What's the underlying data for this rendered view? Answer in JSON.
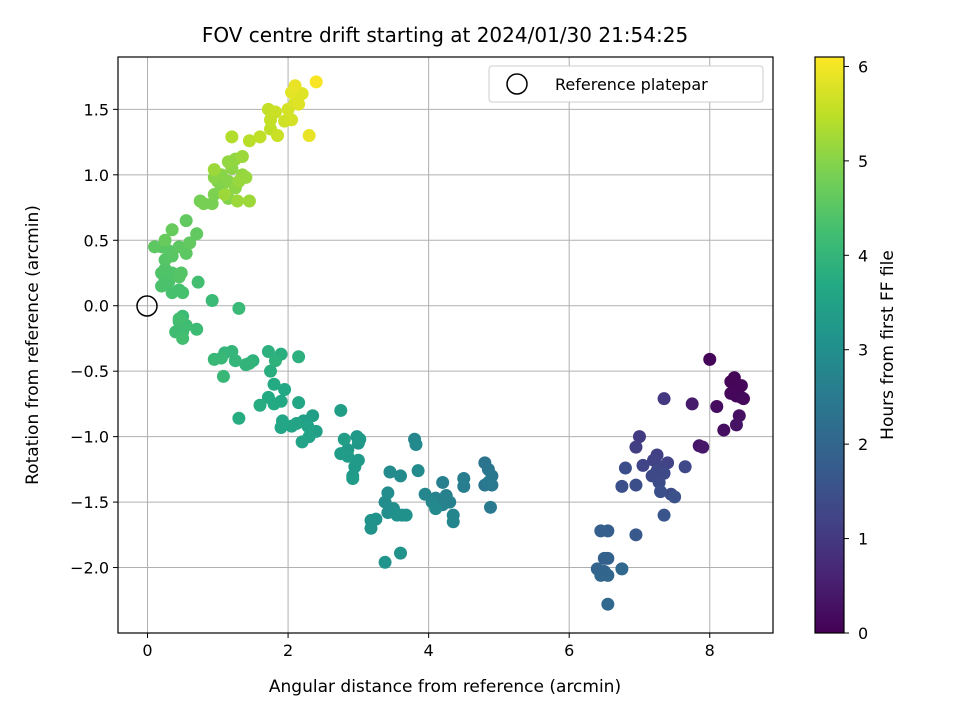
{
  "chart_data": {
    "type": "scatter",
    "title": "FOV centre drift starting at 2024/01/30 21:54:25",
    "xlabel": "Angular distance from reference (arcmin)",
    "ylabel": "Rotation from reference (arcmin)",
    "xlim": [
      -0.42,
      8.9
    ],
    "ylim": [
      -2.5,
      1.9
    ],
    "xticks": [
      0,
      2,
      4,
      6,
      8
    ],
    "xtick_labels": [
      "0",
      "2",
      "4",
      "6",
      "8"
    ],
    "yticks": [
      1.5,
      1.0,
      0.5,
      0.0,
      -0.5,
      -1.0,
      -1.5,
      -2.0
    ],
    "ytick_labels": [
      "1.5",
      "1.0",
      "0.5",
      "0.0",
      "−0.5",
      "−1.0",
      "−1.5",
      "−2.0"
    ],
    "grid": true,
    "colormap": "viridis",
    "colorbar": {
      "label": "Hours from first FF file",
      "range": [
        0,
        6.1
      ],
      "ticks": [
        0,
        1,
        2,
        3,
        4,
        5,
        6
      ],
      "tick_labels": [
        "0",
        "1",
        "2",
        "3",
        "4",
        "5",
        "6"
      ]
    },
    "legend": {
      "placement": "top-right",
      "label": "Reference platepar"
    },
    "reference_point": {
      "x": 0,
      "y": 0
    },
    "points": [
      [
        8.0,
        -0.41,
        0.05
      ],
      [
        8.35,
        -0.55,
        0.05
      ],
      [
        8.3,
        -0.58,
        0.08
      ],
      [
        8.45,
        -0.61,
        0.1
      ],
      [
        8.35,
        -0.65,
        0.1
      ],
      [
        8.3,
        -0.67,
        0.12
      ],
      [
        8.38,
        -0.69,
        0.1
      ],
      [
        8.45,
        -0.7,
        0.12
      ],
      [
        8.48,
        -0.71,
        0.15
      ],
      [
        8.1,
        -0.77,
        0.2
      ],
      [
        8.42,
        -0.84,
        0.25
      ],
      [
        8.2,
        -0.95,
        0.25
      ],
      [
        8.38,
        -0.91,
        0.3
      ],
      [
        7.85,
        -1.07,
        0.35
      ],
      [
        7.9,
        -1.08,
        0.4
      ],
      [
        7.75,
        -0.75,
        0.45
      ],
      [
        7.35,
        -0.71,
        1.0
      ],
      [
        7.0,
        -1.0,
        1.05
      ],
      [
        6.95,
        -1.08,
        1.1
      ],
      [
        7.25,
        -1.14,
        1.15
      ],
      [
        7.2,
        -1.18,
        1.2
      ],
      [
        7.4,
        -1.2,
        1.2
      ],
      [
        7.05,
        -1.22,
        1.25
      ],
      [
        7.3,
        -1.23,
        1.25
      ],
      [
        7.25,
        -1.26,
        1.3
      ],
      [
        7.65,
        -1.23,
        1.3
      ],
      [
        7.35,
        -1.28,
        1.35
      ],
      [
        7.18,
        -1.3,
        1.35
      ],
      [
        7.28,
        -1.35,
        1.4
      ],
      [
        7.45,
        -1.44,
        1.4
      ],
      [
        6.95,
        -1.37,
        1.45
      ],
      [
        6.75,
        -1.38,
        1.5
      ],
      [
        6.8,
        -1.24,
        1.45
      ],
      [
        7.3,
        -1.42,
        1.5
      ],
      [
        7.5,
        -1.46,
        1.55
      ],
      [
        7.35,
        -1.6,
        1.6
      ],
      [
        6.95,
        -1.75,
        1.7
      ],
      [
        6.55,
        -1.72,
        1.8
      ],
      [
        6.45,
        -1.72,
        1.85
      ],
      [
        6.5,
        -1.93,
        1.85
      ],
      [
        6.55,
        -1.93,
        1.9
      ],
      [
        6.4,
        -2.01,
        1.95
      ],
      [
        6.5,
        -2.03,
        1.95
      ],
      [
        6.45,
        -2.06,
        2.0
      ],
      [
        6.55,
        -2.06,
        2.0
      ],
      [
        6.75,
        -2.01,
        2.05
      ],
      [
        6.55,
        -2.28,
        2.05
      ],
      [
        4.8,
        -1.2,
        2.35
      ],
      [
        4.85,
        -1.25,
        2.4
      ],
      [
        4.9,
        -1.3,
        2.45
      ],
      [
        4.8,
        -1.37,
        2.4
      ],
      [
        4.9,
        -1.37,
        2.45
      ],
      [
        4.85,
        -1.35,
        2.5
      ],
      [
        4.88,
        -1.54,
        2.5
      ],
      [
        4.5,
        -1.32,
        2.55
      ],
      [
        4.5,
        -1.38,
        2.55
      ],
      [
        4.2,
        -1.35,
        2.6
      ],
      [
        4.25,
        -1.45,
        2.65
      ],
      [
        4.3,
        -1.5,
        2.65
      ],
      [
        4.1,
        -1.47,
        2.7
      ],
      [
        4.2,
        -1.52,
        2.7
      ],
      [
        4.35,
        -1.6,
        2.75
      ],
      [
        4.35,
        -1.65,
        2.75
      ],
      [
        3.95,
        -1.44,
        2.8
      ],
      [
        4.05,
        -1.5,
        2.8
      ],
      [
        4.1,
        -1.55,
        2.85
      ],
      [
        3.8,
        -1.02,
        2.8
      ],
      [
        3.82,
        -1.06,
        2.85
      ],
      [
        3.85,
        -1.26,
        2.9
      ],
      [
        3.6,
        -1.3,
        2.9
      ],
      [
        3.45,
        -1.27,
        2.9
      ],
      [
        3.42,
        -1.43,
        2.95
      ],
      [
        3.38,
        -1.5,
        2.95
      ],
      [
        3.5,
        -1.55,
        3.0
      ],
      [
        3.42,
        -1.58,
        3.0
      ],
      [
        3.55,
        -1.6,
        3.05
      ],
      [
        3.62,
        -1.6,
        3.05
      ],
      [
        3.68,
        -1.6,
        3.05
      ],
      [
        3.25,
        -1.63,
        3.1
      ],
      [
        3.18,
        -1.64,
        3.1
      ],
      [
        3.18,
        -1.7,
        3.1
      ],
      [
        3.6,
        -1.89,
        3.1
      ],
      [
        3.38,
        -1.96,
        3.15
      ],
      [
        2.98,
        -1.0,
        3.2
      ],
      [
        3.0,
        -1.05,
        3.2
      ],
      [
        3.02,
        -1.02,
        3.25
      ],
      [
        2.85,
        -1.1,
        3.25
      ],
      [
        3.0,
        -1.18,
        3.3
      ],
      [
        2.95,
        -1.23,
        3.3
      ],
      [
        2.92,
        -1.3,
        3.3
      ],
      [
        2.92,
        -1.32,
        3.35
      ],
      [
        2.85,
        -1.15,
        3.35
      ],
      [
        2.75,
        -1.13,
        3.35
      ],
      [
        2.8,
        -1.02,
        3.4
      ],
      [
        2.75,
        -0.8,
        3.4
      ],
      [
        2.35,
        -0.84,
        3.4
      ],
      [
        2.22,
        -0.88,
        3.45
      ],
      [
        2.4,
        -0.96,
        3.45
      ],
      [
        2.3,
        -1.0,
        3.5
      ],
      [
        2.2,
        -1.04,
        3.5
      ],
      [
        2.28,
        -0.92,
        3.5
      ],
      [
        2.12,
        -0.9,
        3.55
      ],
      [
        2.05,
        -0.92,
        3.55
      ],
      [
        1.92,
        -0.88,
        3.6
      ],
      [
        1.9,
        -0.93,
        3.6
      ],
      [
        2.15,
        -0.74,
        3.6
      ],
      [
        1.9,
        -0.73,
        3.65
      ],
      [
        1.95,
        -0.64,
        3.65
      ],
      [
        1.8,
        -0.6,
        3.7
      ],
      [
        1.72,
        -0.7,
        3.7
      ],
      [
        1.8,
        -0.75,
        3.7
      ],
      [
        1.6,
        -0.76,
        3.75
      ],
      [
        1.3,
        -0.86,
        3.75
      ],
      [
        1.75,
        -0.5,
        3.8
      ],
      [
        1.9,
        -0.37,
        3.8
      ],
      [
        1.72,
        -0.35,
        3.85
      ],
      [
        2.15,
        -0.39,
        3.85
      ],
      [
        1.82,
        -0.42,
        3.9
      ],
      [
        1.5,
        -0.42,
        3.9
      ],
      [
        1.4,
        -0.45,
        3.95
      ],
      [
        1.45,
        -0.44,
        3.95
      ],
      [
        1.2,
        -0.35,
        4.0
      ],
      [
        1.25,
        -0.42,
        4.0
      ],
      [
        1.1,
        -0.36,
        4.0
      ],
      [
        1.05,
        -0.4,
        4.05
      ],
      [
        0.95,
        -0.41,
        4.05
      ],
      [
        1.08,
        -0.54,
        4.05
      ],
      [
        1.3,
        -0.02,
        4.1
      ],
      [
        0.92,
        0.04,
        4.1
      ],
      [
        0.7,
        -0.18,
        4.15
      ],
      [
        0.5,
        -0.08,
        4.15
      ],
      [
        0.45,
        -0.12,
        4.15
      ],
      [
        0.55,
        -0.15,
        4.2
      ],
      [
        0.5,
        -0.2,
        4.2
      ],
      [
        0.4,
        -0.2,
        4.2
      ],
      [
        0.5,
        -0.25,
        4.25
      ],
      [
        0.45,
        -0.1,
        4.25
      ],
      [
        0.72,
        0.18,
        4.25
      ],
      [
        0.5,
        0.1,
        4.3
      ],
      [
        0.45,
        0.12,
        4.3
      ],
      [
        0.35,
        0.1,
        4.3
      ],
      [
        0.2,
        0.15,
        4.35
      ],
      [
        0.25,
        0.2,
        4.35
      ],
      [
        0.3,
        0.18,
        4.35
      ],
      [
        0.2,
        0.25,
        4.4
      ],
      [
        0.25,
        0.28,
        4.4
      ],
      [
        0.35,
        0.25,
        4.4
      ],
      [
        0.45,
        0.22,
        4.45
      ],
      [
        0.48,
        0.25,
        4.45
      ],
      [
        0.25,
        0.35,
        4.45
      ],
      [
        0.35,
        0.38,
        4.5
      ],
      [
        0.3,
        0.42,
        4.5
      ],
      [
        0.2,
        0.45,
        4.5
      ],
      [
        0.1,
        0.45,
        4.55
      ],
      [
        0.45,
        0.45,
        4.55
      ],
      [
        0.55,
        0.4,
        4.55
      ],
      [
        0.6,
        0.48,
        4.6
      ],
      [
        0.7,
        0.55,
        4.6
      ],
      [
        0.55,
        0.65,
        4.6
      ],
      [
        0.35,
        0.58,
        4.65
      ],
      [
        0.25,
        0.5,
        4.65
      ],
      [
        0.75,
        0.8,
        4.8
      ],
      [
        0.8,
        0.78,
        4.85
      ],
      [
        0.92,
        0.78,
        4.85
      ],
      [
        0.95,
        0.85,
        4.9
      ],
      [
        1.05,
        0.9,
        4.9
      ],
      [
        1.15,
        0.82,
        4.95
      ],
      [
        1.0,
        0.95,
        4.95
      ],
      [
        0.95,
        0.98,
        5.0
      ],
      [
        1.05,
        1.0,
        5.0
      ],
      [
        1.15,
        0.95,
        5.0
      ],
      [
        1.25,
        0.9,
        5.05
      ],
      [
        1.2,
        1.05,
        5.05
      ],
      [
        1.15,
        1.1,
        5.1
      ],
      [
        1.25,
        1.12,
        5.1
      ],
      [
        1.35,
        1.0,
        5.1
      ],
      [
        1.3,
        0.95,
        5.15
      ],
      [
        1.4,
        0.98,
        5.15
      ],
      [
        1.35,
        1.14,
        5.2
      ],
      [
        1.28,
        0.8,
        5.2
      ],
      [
        1.45,
        0.8,
        5.2
      ],
      [
        0.95,
        1.04,
        5.2
      ],
      [
        1.1,
        0.85,
        5.2
      ],
      [
        1.2,
        1.29,
        5.4
      ],
      [
        1.45,
        1.26,
        5.45
      ],
      [
        1.6,
        1.29,
        5.5
      ],
      [
        1.75,
        1.35,
        5.5
      ],
      [
        1.75,
        1.42,
        5.55
      ],
      [
        1.72,
        1.5,
        5.55
      ],
      [
        1.82,
        1.48,
        5.6
      ],
      [
        1.85,
        1.3,
        5.6
      ],
      [
        1.95,
        1.41,
        5.65
      ],
      [
        2.05,
        1.42,
        5.7
      ],
      [
        2.0,
        1.5,
        5.7
      ],
      [
        2.1,
        1.55,
        5.75
      ],
      [
        2.15,
        1.54,
        5.8
      ],
      [
        2.2,
        1.62,
        5.8
      ],
      [
        2.05,
        1.63,
        5.85
      ],
      [
        2.1,
        1.68,
        5.9
      ],
      [
        2.3,
        1.3,
        5.9
      ],
      [
        2.4,
        1.71,
        6.05
      ]
    ]
  }
}
